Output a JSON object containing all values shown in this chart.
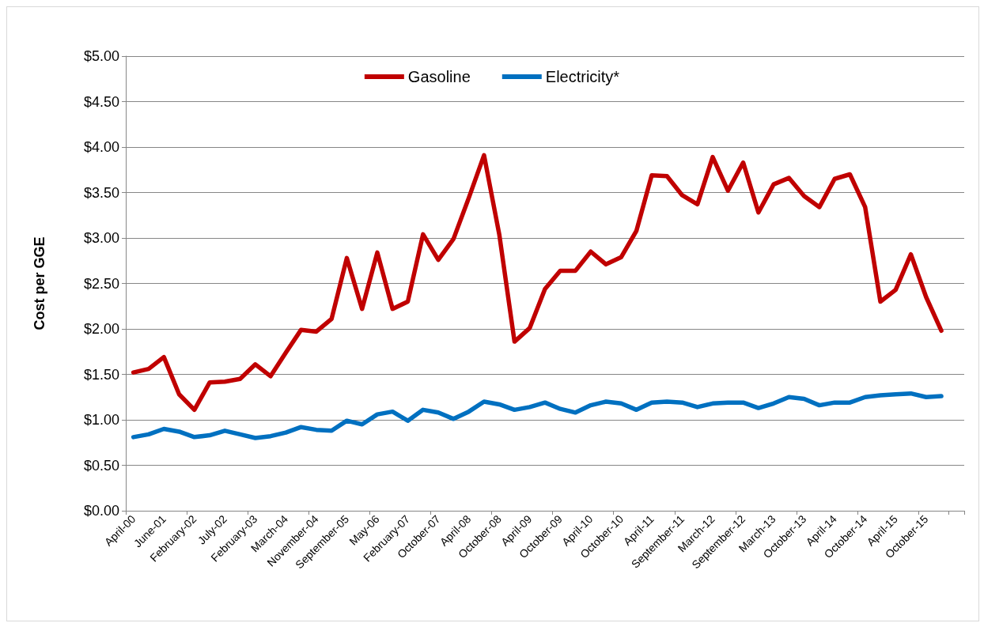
{
  "chart_data": {
    "type": "line",
    "ylabel": "Cost per GGE",
    "categories": [
      "April-00",
      null,
      "June-01",
      null,
      "February-02",
      null,
      "July-02",
      null,
      "February-03",
      null,
      "March-04",
      null,
      "November-04",
      null,
      "September-05",
      null,
      "May-06",
      null,
      "February-07",
      null,
      "October-07",
      null,
      "April-08",
      null,
      "October-08",
      null,
      "April-09",
      null,
      "October-09",
      null,
      "April-10",
      null,
      "October-10",
      null,
      "April-11",
      null,
      "September-11",
      null,
      "March-12",
      null,
      "September-12",
      null,
      "March-13",
      null,
      "October-13",
      null,
      "April-14",
      null,
      "October-14",
      null,
      "April-15",
      null,
      "October-15",
      null,
      null
    ],
    "series": [
      {
        "name": "Gasoline",
        "color": "#c00000",
        "values": [
          1.52,
          1.56,
          1.69,
          1.28,
          1.11,
          1.41,
          1.42,
          1.45,
          1.61,
          1.48,
          1.74,
          1.99,
          1.97,
          2.11,
          2.78,
          2.22,
          2.84,
          2.22,
          2.3,
          3.04,
          2.76,
          2.99,
          3.44,
          3.91,
          3.04,
          1.86,
          2.01,
          2.44,
          2.64,
          2.64,
          2.85,
          2.71,
          2.79,
          3.08,
          3.69,
          3.68,
          3.47,
          3.37,
          3.89,
          3.52,
          3.83,
          3.28,
          3.59,
          3.66,
          3.46,
          3.34,
          3.65,
          3.7,
          3.34,
          2.3,
          2.43,
          2.82,
          2.35,
          1.98,
          null
        ]
      },
      {
        "name": "Electricity*",
        "color": "#0070c0",
        "values": [
          0.81,
          0.84,
          0.9,
          0.87,
          0.81,
          0.83,
          0.88,
          0.84,
          0.8,
          0.82,
          0.86,
          0.92,
          0.89,
          0.88,
          0.99,
          0.95,
          1.06,
          1.09,
          0.99,
          1.11,
          1.08,
          1.01,
          1.09,
          1.2,
          1.17,
          1.11,
          1.14,
          1.19,
          1.12,
          1.08,
          1.16,
          1.2,
          1.18,
          1.11,
          1.19,
          1.2,
          1.19,
          1.14,
          1.18,
          1.19,
          1.19,
          1.13,
          1.18,
          1.25,
          1.23,
          1.16,
          1.19,
          1.19,
          1.25,
          1.27,
          1.28,
          1.29,
          1.25,
          1.26,
          null
        ]
      }
    ],
    "ylim": [
      0,
      5
    ],
    "yticks": [
      {
        "value": 0,
        "label": "$0.00"
      },
      {
        "value": 0.5,
        "label": "$0.50"
      },
      {
        "value": 1,
        "label": "$1.00"
      },
      {
        "value": 1.5,
        "label": "$1.50"
      },
      {
        "value": 2,
        "label": "$2.00"
      },
      {
        "value": 2.5,
        "label": "$2.50"
      },
      {
        "value": 3,
        "label": "$3.00"
      },
      {
        "value": 3.5,
        "label": "$3.50"
      },
      {
        "value": 4,
        "label": "$4.00"
      },
      {
        "value": 4.5,
        "label": "$4.50"
      },
      {
        "value": 5,
        "label": "$5.00"
      }
    ],
    "grid": "y",
    "legend": "top",
    "marker": "none",
    "line_style": "solid"
  }
}
